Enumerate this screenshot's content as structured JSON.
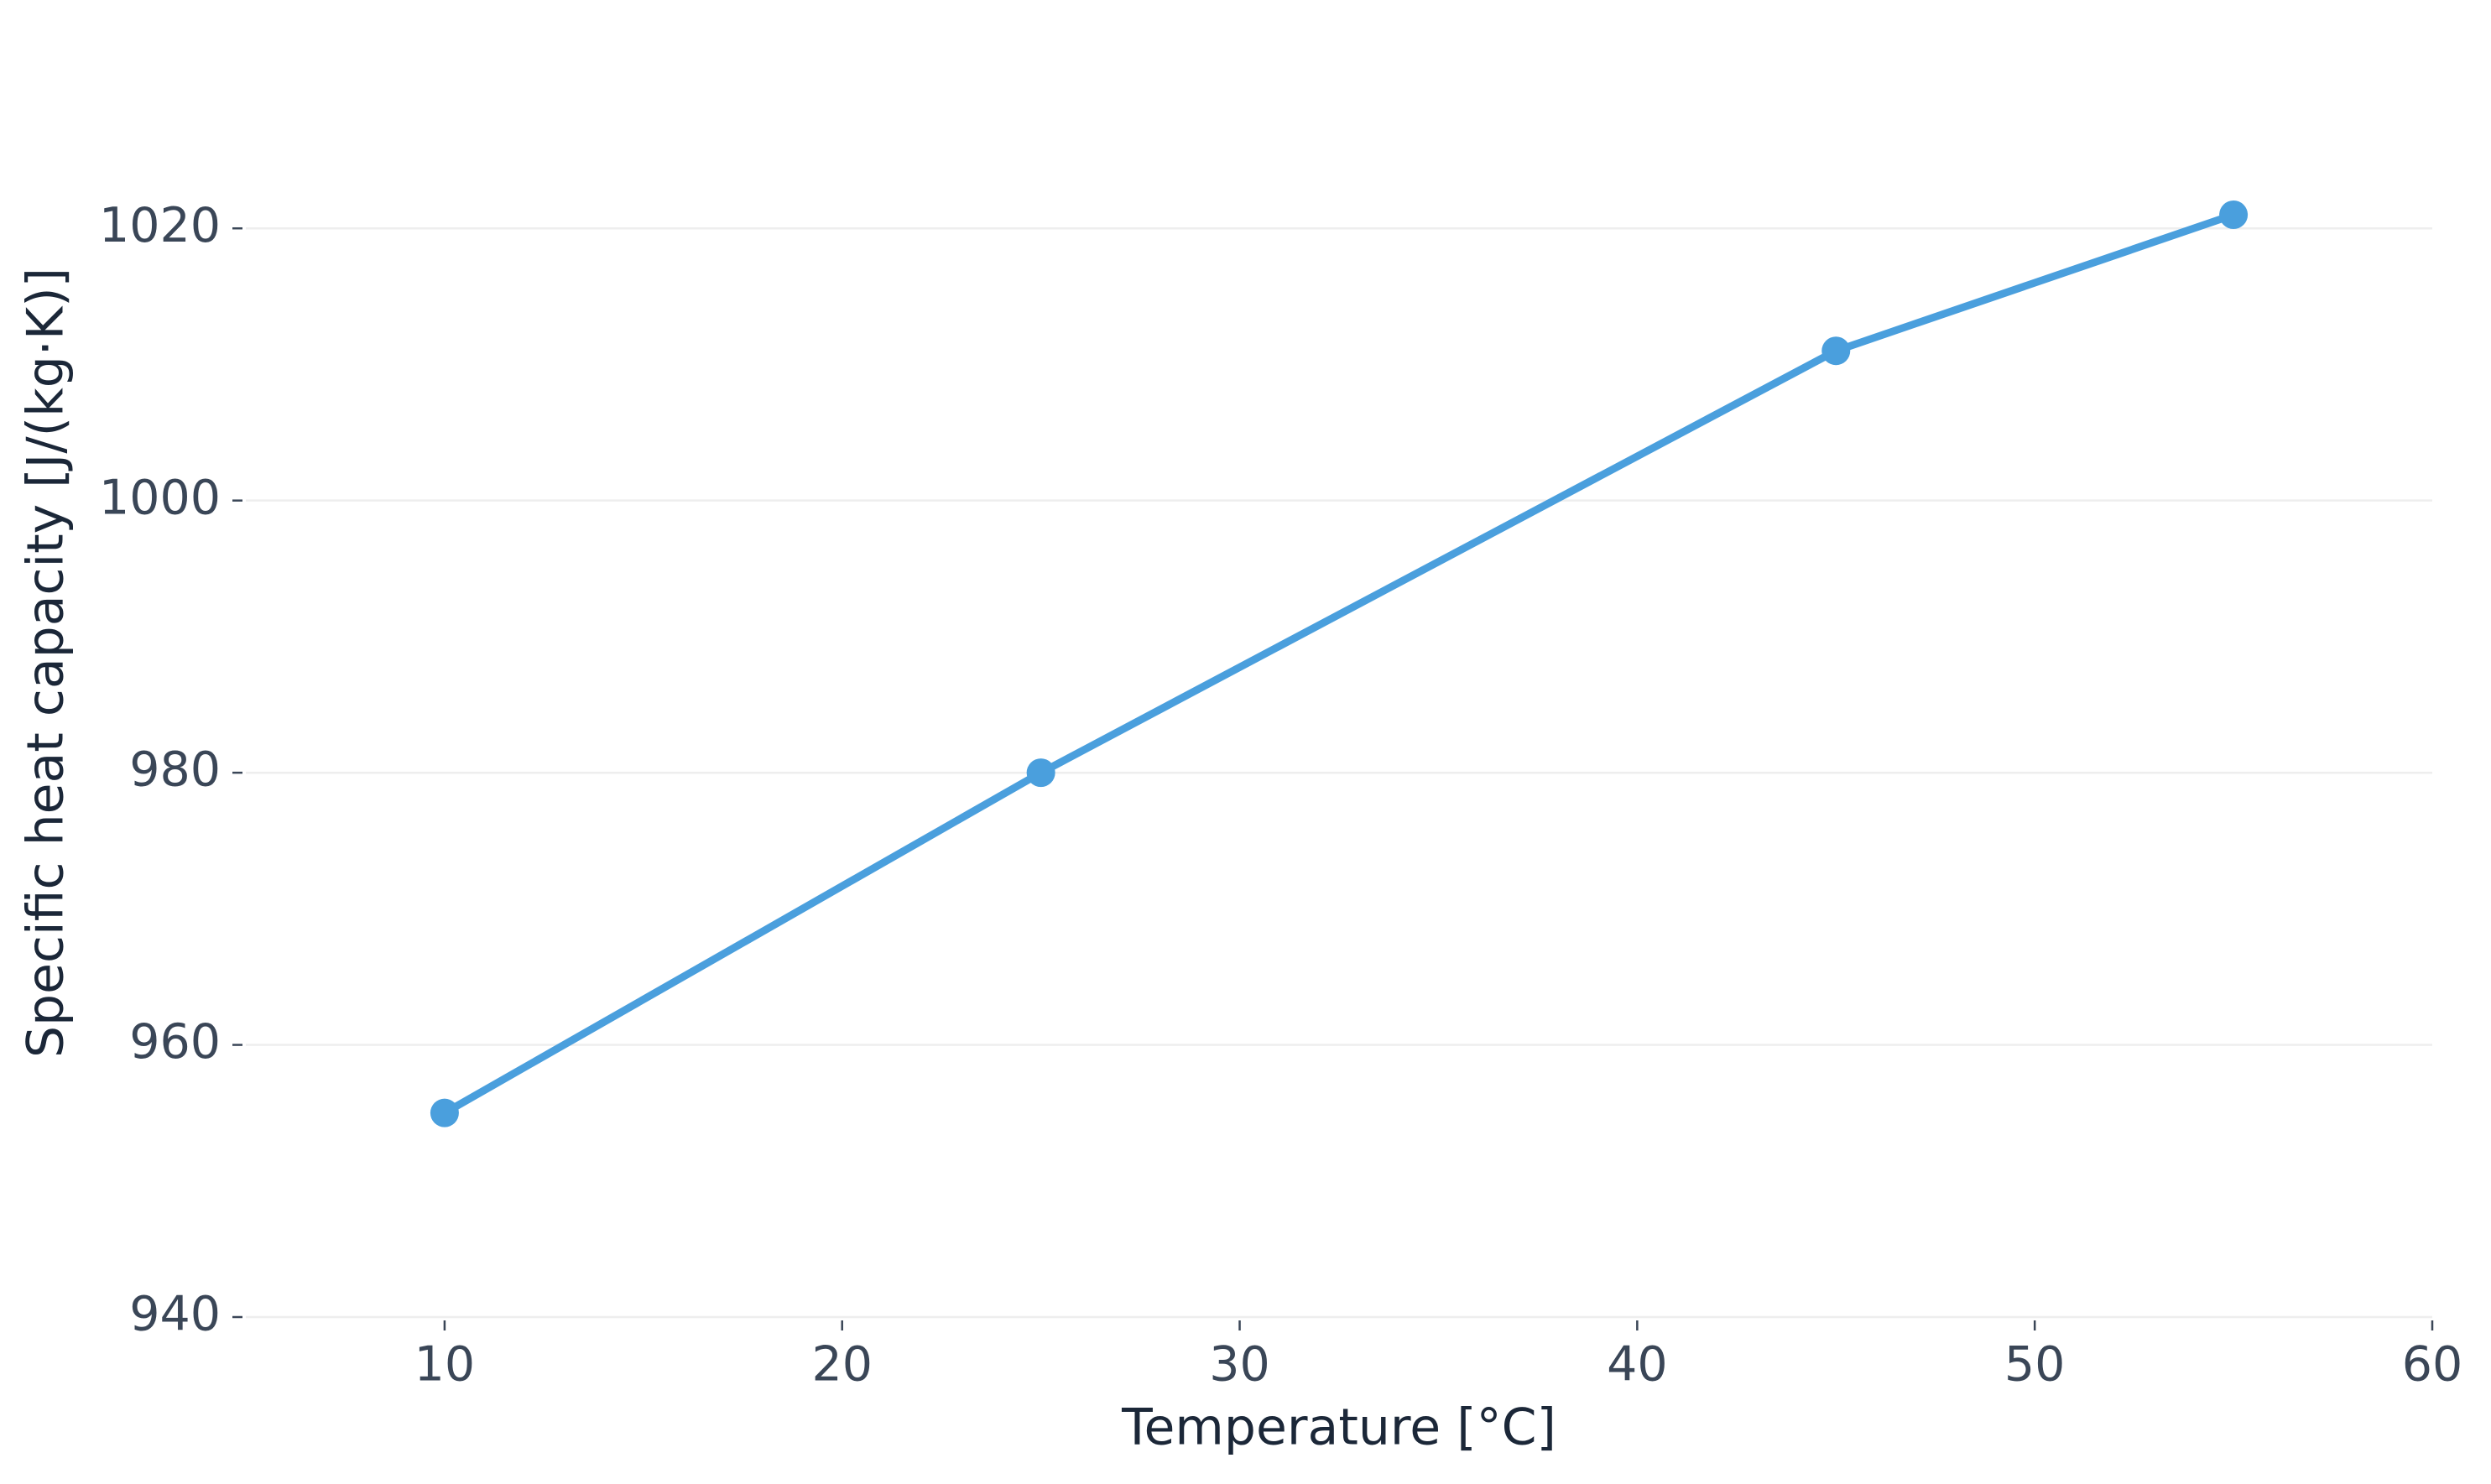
{
  "chart_data": {
    "type": "line",
    "xlabel": "Temperature [°C]",
    "ylabel": "Specific heat capacity [J/(kg·K)]",
    "x": [
      10,
      25,
      45,
      55
    ],
    "series": [
      {
        "color": "#4a9fdd",
        "values": [
          955,
          980,
          1011,
          1021
        ]
      }
    ],
    "xlim": [
      5,
      60
    ],
    "xticks": [
      10,
      20,
      30,
      40,
      50,
      60
    ],
    "ylim": [
      940,
      1030
    ],
    "yticks": [
      940,
      960,
      980,
      1000,
      1020
    ],
    "grid": true
  }
}
